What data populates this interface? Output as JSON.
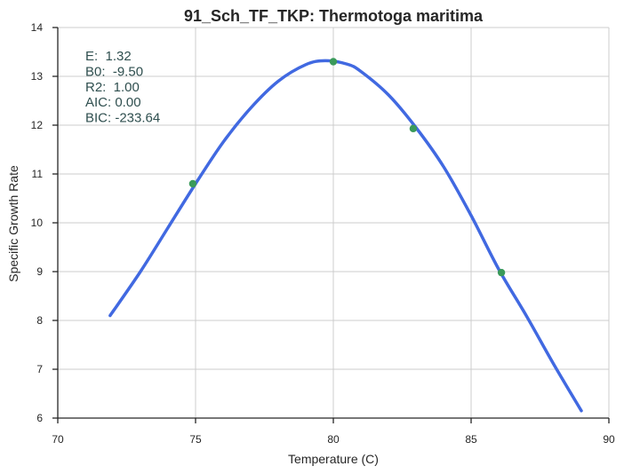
{
  "chart_data": {
    "type": "line",
    "title": "91_Sch_TF_TKP: Thermotoga maritima",
    "xlabel": "Temperature (C)",
    "ylabel": "Specific Growth Rate",
    "xlim": [
      70,
      90
    ],
    "ylim": [
      6,
      14
    ],
    "xticks": [
      70,
      75,
      80,
      85,
      90
    ],
    "yticks": [
      6,
      7,
      8,
      9,
      10,
      11,
      12,
      13,
      14
    ],
    "grid": true,
    "series": [
      {
        "kind": "fitted-curve",
        "color": "#4169e1",
        "x": [
          71.9,
          73.0,
          74.0,
          75.0,
          76.0,
          77.0,
          78.0,
          79.0,
          79.7,
          80.5,
          81.0,
          82.0,
          83.0,
          84.0,
          85.0,
          86.0,
          87.0,
          88.0,
          89.0
        ],
        "y": [
          8.1,
          9.0,
          9.9,
          10.8,
          11.65,
          12.35,
          12.9,
          13.24,
          13.32,
          13.25,
          13.1,
          12.62,
          11.95,
          11.15,
          10.15,
          9.05,
          8.1,
          7.1,
          6.15
        ]
      },
      {
        "kind": "observed",
        "color": "#3a9a5a",
        "x": [
          74.9,
          80.0,
          82.9,
          86.1
        ],
        "y": [
          10.8,
          13.3,
          11.93,
          8.98
        ]
      }
    ],
    "annotations": [
      "E:  1.32",
      "B0:  -9.50",
      "R2:  1.00",
      "AIC: 0.00",
      "BIC: -233.64"
    ]
  }
}
